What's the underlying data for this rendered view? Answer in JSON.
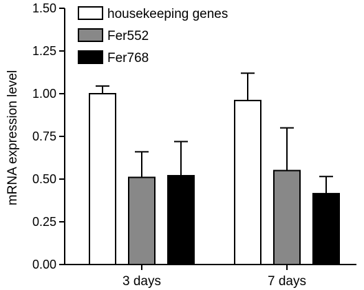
{
  "chart_data": {
    "type": "bar",
    "title": "",
    "xlabel": "",
    "ylabel": "mRNA expression level",
    "ylim": [
      0,
      1.5
    ],
    "yticks": [
      "0.00",
      "0.25",
      "0.50",
      "0.75",
      "1.00",
      "1.25",
      "1.50"
    ],
    "categories": [
      "3 days",
      "7 days"
    ],
    "legend_position": "top-left",
    "grid": false,
    "series": [
      {
        "name": "housekeeping genes",
        "color": "#ffffff",
        "values": [
          1.0,
          0.96
        ],
        "errors": [
          0.045,
          0.16
        ]
      },
      {
        "name": "Fer552",
        "color": "#888888",
        "values": [
          0.51,
          0.55
        ],
        "errors": [
          0.15,
          0.25
        ]
      },
      {
        "name": "Fer768",
        "color": "#000000",
        "values": [
          0.52,
          0.415
        ],
        "errors": [
          0.2,
          0.1
        ]
      }
    ]
  }
}
